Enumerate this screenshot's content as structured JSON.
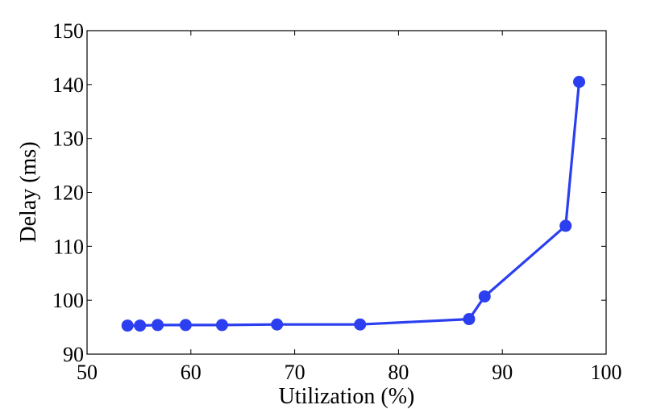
{
  "chart_data": {
    "type": "line",
    "title": "",
    "xlabel": "Utilization (%)",
    "ylabel": "Delay (ms)",
    "xlim": [
      50,
      100
    ],
    "ylim": [
      90,
      150
    ],
    "xticks": [
      50,
      60,
      70,
      80,
      90,
      100
    ],
    "yticks": [
      90,
      100,
      110,
      120,
      130,
      140,
      150
    ],
    "grid": false,
    "legend": "none",
    "series": [
      {
        "color": "#2b3ff0",
        "marker": "circle",
        "x": [
          53.9,
          55.1,
          56.8,
          59.5,
          63.0,
          68.3,
          76.3,
          86.8,
          88.3,
          96.1,
          97.4
        ],
        "y": [
          95.3,
          95.3,
          95.4,
          95.4,
          95.4,
          95.5,
          95.5,
          96.5,
          100.7,
          113.8,
          140.5
        ]
      }
    ]
  }
}
